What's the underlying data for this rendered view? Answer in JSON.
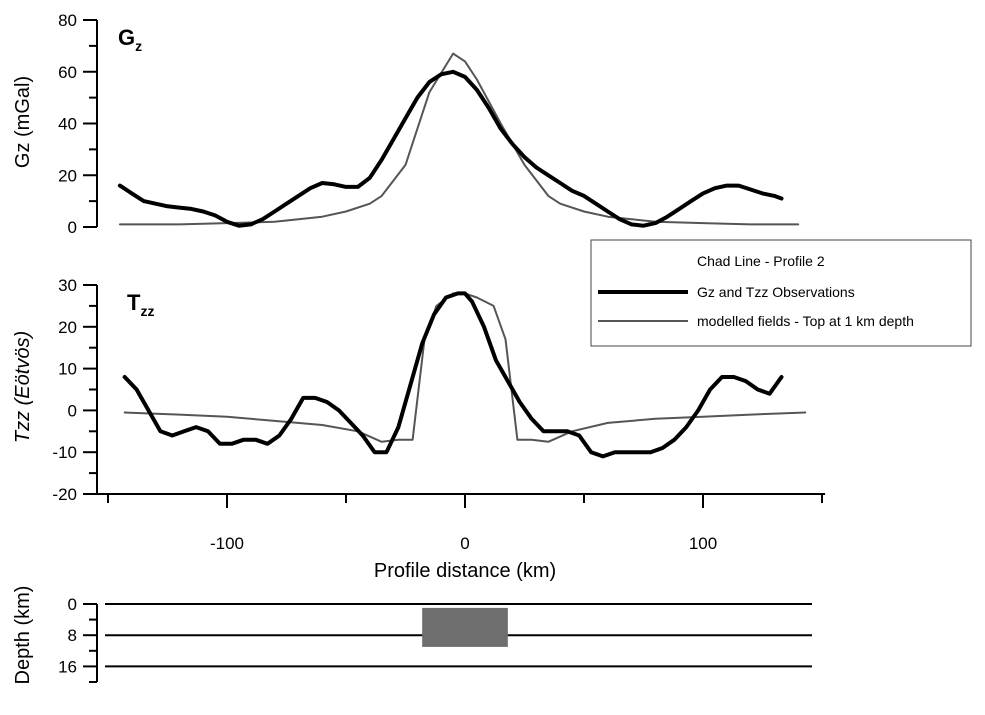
{
  "chart_data": [
    {
      "type": "line",
      "panel_label": "Gz",
      "ylabel": "Gz (mGal)",
      "xlim": [
        -145,
        145
      ],
      "ylim": [
        0,
        80
      ],
      "yticks": [
        "0",
        "20",
        "40",
        "60",
        "80"
      ],
      "grid": false,
      "series": [
        {
          "name": "Gz and Tzz Observations",
          "color": "#000000",
          "x": [
            -145,
            -140,
            -135,
            -130,
            -125,
            -120,
            -115,
            -110,
            -105,
            -100,
            -95,
            -90,
            -85,
            -80,
            -75,
            -70,
            -65,
            -60,
            -55,
            -50,
            -45,
            -40,
            -35,
            -30,
            -25,
            -20,
            -15,
            -10,
            -5,
            0,
            5,
            10,
            15,
            20,
            25,
            30,
            35,
            40,
            45,
            50,
            55,
            60,
            65,
            70,
            75,
            80,
            85,
            90,
            95,
            100,
            105,
            110,
            115,
            120,
            125,
            130,
            133
          ],
          "y": [
            16,
            13,
            10,
            9,
            8,
            7.5,
            7,
            6,
            4.5,
            2,
            0.5,
            1,
            3,
            6,
            9,
            12,
            15,
            17,
            16.5,
            15.5,
            15.5,
            19,
            26,
            34,
            42,
            50,
            56,
            59,
            60,
            58,
            53,
            46,
            38,
            32,
            27,
            23,
            20,
            17,
            14,
            12,
            9,
            6,
            3,
            1,
            0.5,
            1.5,
            4,
            7,
            10,
            13,
            15,
            16,
            16,
            14.5,
            13,
            12,
            11
          ]
        },
        {
          "name": "modelled fields - Top at 1 km depth",
          "color": "#555555",
          "x": [
            -145,
            -120,
            -100,
            -80,
            -70,
            -60,
            -50,
            -40,
            -35,
            -25,
            -15,
            -5,
            0,
            5,
            15,
            25,
            35,
            40,
            50,
            60,
            70,
            80,
            100,
            120,
            140
          ],
          "y": [
            1,
            1,
            1.5,
            2,
            3,
            4,
            6,
            9,
            12,
            24,
            52,
            67,
            64,
            57,
            40,
            24,
            12,
            9,
            6,
            4,
            3,
            2,
            1.5,
            1,
            1
          ]
        }
      ]
    },
    {
      "type": "line",
      "panel_label": "Tzz",
      "ylabel": "Tzz (Eötvös)",
      "xlabel": "Profile distance (km)",
      "xlim": [
        -145,
        145
      ],
      "ylim": [
        -20,
        30
      ],
      "yticks": [
        "-20",
        "-10",
        "0",
        "10",
        "20",
        "30"
      ],
      "xticks": [
        {
          "value": -100,
          "label": "-100"
        },
        {
          "value": 0,
          "label": "0"
        },
        {
          "value": 100,
          "label": "100"
        }
      ],
      "grid": false,
      "legend": {
        "title": "Chad Line - Profile 2",
        "placement": "right"
      },
      "series": [
        {
          "name": "Gz and Tzz Observations",
          "color": "#000000",
          "x": [
            -143,
            -138,
            -133,
            -128,
            -123,
            -118,
            -113,
            -108,
            -103,
            -98,
            -93,
            -88,
            -83,
            -78,
            -73,
            -68,
            -63,
            -58,
            -53,
            -48,
            -43,
            -38,
            -33,
            -28,
            -23,
            -18,
            -13,
            -8,
            -3,
            0,
            3,
            8,
            13,
            18,
            23,
            28,
            33,
            38,
            43,
            48,
            53,
            58,
            63,
            68,
            73,
            78,
            83,
            88,
            93,
            98,
            103,
            108,
            113,
            118,
            123,
            128,
            133
          ],
          "y": [
            8,
            5,
            0,
            -5,
            -6,
            -5,
            -4,
            -5,
            -8,
            -8,
            -7,
            -7,
            -8,
            -6,
            -2,
            3,
            3,
            2,
            0,
            -3,
            -6,
            -10,
            -10,
            -4,
            6,
            16,
            23,
            27,
            28,
            28,
            26,
            20,
            12,
            7,
            2,
            -2,
            -5,
            -5,
            -5,
            -6,
            -10,
            -11,
            -10,
            -10,
            -10,
            -10,
            -9,
            -7,
            -4,
            0,
            5,
            8,
            8,
            7,
            5,
            4,
            8
          ]
        },
        {
          "name": "modelled fields - Top at 1 km depth",
          "color": "#555555",
          "x": [
            -143,
            -120,
            -100,
            -80,
            -60,
            -45,
            -35,
            -28,
            -22,
            -17,
            -12,
            -5,
            0,
            5,
            12,
            17,
            22,
            28,
            35,
            45,
            60,
            80,
            100,
            120,
            143
          ],
          "y": [
            -0.5,
            -1,
            -1.5,
            -2.5,
            -3.5,
            -5,
            -7.5,
            -7,
            -7,
            17,
            25,
            28,
            28,
            27,
            25,
            17,
            -7,
            -7,
            -7.5,
            -5,
            -3,
            -2,
            -1.5,
            -1,
            -0.5
          ]
        }
      ]
    },
    {
      "type": "diagram",
      "ylabel": "Depth (km)",
      "yticks": [
        "0",
        "8",
        "16"
      ],
      "layer_lines_km": [
        0,
        8,
        16
      ],
      "body": {
        "x_range": [
          -18,
          18
        ],
        "depth_range": [
          1,
          11
        ],
        "color": "#6e6e6e"
      }
    }
  ]
}
